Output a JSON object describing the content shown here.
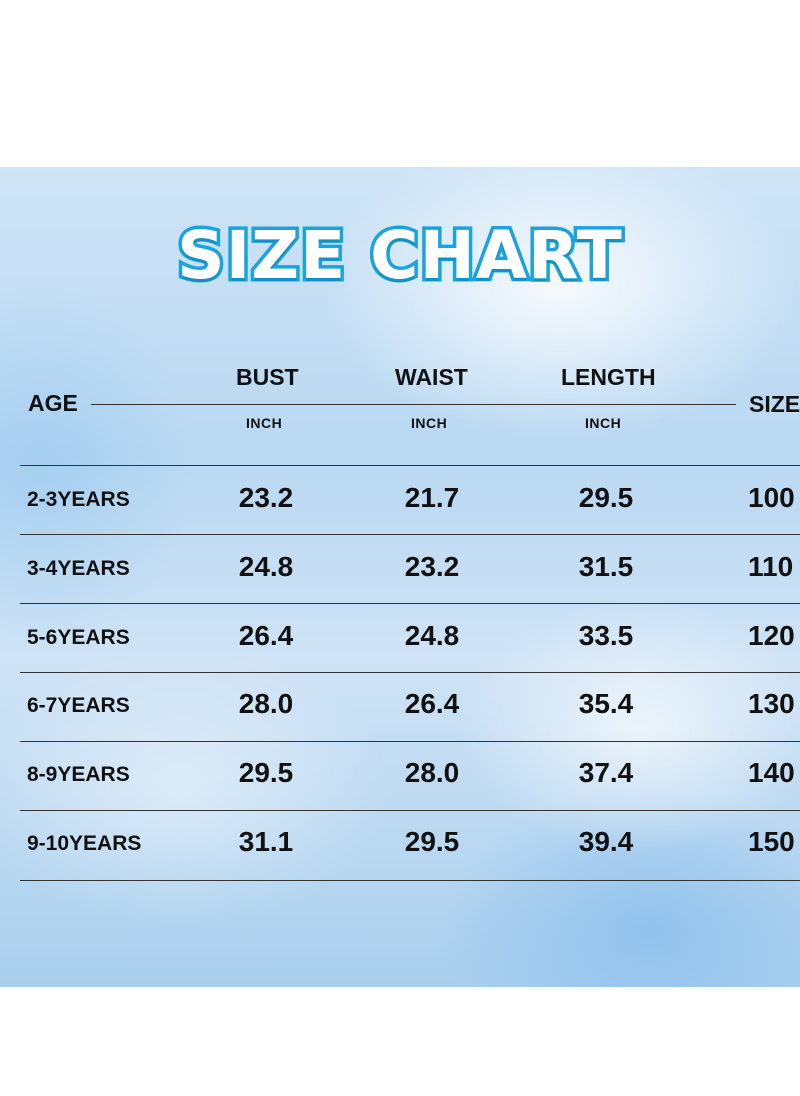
{
  "title": "SIZE CHART",
  "headers": {
    "age": "AGE",
    "bust": "BUST",
    "waist": "WAIST",
    "length": "LENGTH",
    "size": "SIZE",
    "unit": "INCH"
  },
  "rows": [
    {
      "age": "2-3YEARS",
      "bust": "23.2",
      "waist": "21.7",
      "length": "29.5",
      "size": "100"
    },
    {
      "age": "3-4YEARS",
      "bust": "24.8",
      "waist": "23.2",
      "length": "31.5",
      "size": "110"
    },
    {
      "age": "5-6YEARS",
      "bust": "26.4",
      "waist": "24.8",
      "length": "33.5",
      "size": "120"
    },
    {
      "age": "6-7YEARS",
      "bust": "28.0",
      "waist": "26.4",
      "length": "35.4",
      "size": "130"
    },
    {
      "age": "8-9YEARS",
      "bust": "29.5",
      "waist": "28.0",
      "length": "37.4",
      "size": "140"
    },
    {
      "age": "9-10YEARS",
      "bust": "31.1",
      "waist": "29.5",
      "length": "39.4",
      "size": "150"
    }
  ],
  "colors": {
    "title_stroke": "#1aa3dc",
    "text": "#111111"
  }
}
